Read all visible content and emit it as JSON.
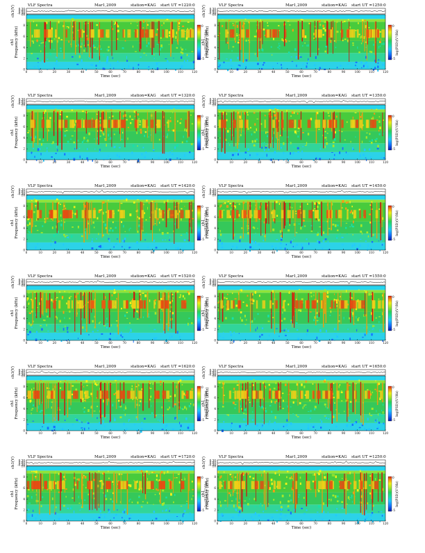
{
  "header": {
    "title": "VLF Spectra",
    "date": "Mar1,2009",
    "station": "station=KAG",
    "start_prefix": "start  UT  ="
  },
  "labels": {
    "wave_axis": "ch1(V)",
    "freq_axis_line1": "ch1",
    "freq_axis_line2": "Frequency (kHz)",
    "time_axis": "Time (sec)",
    "colorbar": "log(PSD)(V²/Hz)"
  },
  "colors": {
    "ink": "#000000",
    "colormap": [
      "#0a1aa8",
      "#1670ff",
      "#22c8ff",
      "#19e0a8",
      "#2dd35a",
      "#a6e82a",
      "#f2f21a",
      "#f79a14",
      "#e02010"
    ]
  },
  "chart_data": [
    {
      "type": "heatmap",
      "title": "VLF Spectra",
      "date": "Mar1,2009",
      "station": "KAG",
      "start_ut": "1220:0",
      "xlabel": "Time (sec)",
      "ylabel": "Frequency (kHz)",
      "xlim": [
        0,
        120
      ],
      "ylim": [
        0,
        10
      ],
      "x_ticks": [
        0,
        10,
        20,
        30,
        40,
        50,
        60,
        70,
        80,
        90,
        100,
        110,
        120
      ],
      "y_ticks": [
        0,
        2,
        4,
        6,
        8,
        10
      ],
      "wave_ticks": [
        "0.30",
        "0.00",
        "-0.30"
      ],
      "colorbar_ticks": [
        "0",
        "-5"
      ]
    },
    {
      "type": "heatmap",
      "title": "VLF Spectra",
      "date": "Mar1,2009",
      "station": "KAG",
      "start_ut": "1250:0",
      "xlabel": "Time (sec)",
      "ylabel": "Frequency (kHz)",
      "xlim": [
        0,
        120
      ],
      "ylim": [
        0,
        10
      ],
      "x_ticks": [
        0,
        10,
        20,
        30,
        40,
        50,
        60,
        70,
        80,
        90,
        100,
        110,
        120
      ],
      "y_ticks": [
        0,
        2,
        4,
        6,
        8,
        10
      ],
      "wave_ticks": [
        "0.30",
        "0.00",
        "-0.30"
      ],
      "colorbar_ticks": [
        "0",
        "-5"
      ]
    },
    {
      "type": "heatmap",
      "title": "VLF Spectra",
      "date": "Mar1,2009",
      "station": "KAG",
      "start_ut": "1320:0",
      "xlabel": "Time (sec)",
      "ylabel": "Frequency (kHz)",
      "xlim": [
        0,
        120
      ],
      "ylim": [
        0,
        10
      ],
      "x_ticks": [
        0,
        10,
        20,
        30,
        40,
        50,
        60,
        70,
        80,
        90,
        100,
        110,
        120
      ],
      "y_ticks": [
        0,
        2,
        4,
        6,
        8,
        10
      ],
      "wave_ticks": [
        "0.30",
        "0.00",
        "-0.30"
      ],
      "colorbar_ticks": [
        "0",
        "-5"
      ]
    },
    {
      "type": "heatmap",
      "title": "VLF Spectra",
      "date": "Mar1,2009",
      "station": "KAG",
      "start_ut": "1350:0",
      "xlabel": "Time (sec)",
      "ylabel": "Frequency (kHz)",
      "xlim": [
        0,
        120
      ],
      "ylim": [
        0,
        10
      ],
      "x_ticks": [
        0,
        10,
        20,
        30,
        40,
        50,
        60,
        70,
        80,
        90,
        100,
        110,
        120
      ],
      "y_ticks": [
        0,
        2,
        4,
        6,
        8,
        10
      ],
      "wave_ticks": [
        "0.30",
        "0.00",
        "-0.30"
      ],
      "colorbar_ticks": [
        "0",
        "-5"
      ]
    },
    {
      "type": "heatmap",
      "title": "VLF Spectra",
      "date": "Mar1,2009",
      "station": "KAG",
      "start_ut": "1420:0",
      "xlabel": "Time (sec)",
      "ylabel": "Frequency (kHz)",
      "xlim": [
        0,
        120
      ],
      "ylim": [
        0,
        10
      ],
      "x_ticks": [
        0,
        10,
        20,
        30,
        40,
        50,
        60,
        70,
        80,
        90,
        100,
        110,
        120
      ],
      "y_ticks": [
        0,
        2,
        4,
        6,
        8,
        10
      ],
      "wave_ticks": [
        "0.30",
        "0.00",
        "-0.30"
      ],
      "colorbar_ticks": [
        "0",
        "-5"
      ]
    },
    {
      "type": "heatmap",
      "title": "VLF Spectra",
      "date": "Mar1,2009",
      "station": "KAG",
      "start_ut": "1450:0",
      "xlabel": "Time (sec)",
      "ylabel": "Frequency (kHz)",
      "xlim": [
        0,
        120
      ],
      "ylim": [
        0,
        10
      ],
      "x_ticks": [
        0,
        10,
        20,
        30,
        40,
        50,
        60,
        70,
        80,
        90,
        100,
        110,
        120
      ],
      "y_ticks": [
        0,
        2,
        4,
        6,
        8,
        10
      ],
      "wave_ticks": [
        "0.30",
        "0.00",
        "-0.30"
      ],
      "colorbar_ticks": [
        "0",
        "-5"
      ]
    },
    {
      "type": "heatmap",
      "title": "VLF Spectra",
      "date": "Mar1,2009",
      "station": "KAG",
      "start_ut": "1520:0",
      "xlabel": "Time (sec)",
      "ylabel": "Frequency (kHz)",
      "xlim": [
        0,
        120
      ],
      "ylim": [
        0,
        10
      ],
      "x_ticks": [
        0,
        10,
        20,
        30,
        40,
        50,
        60,
        70,
        80,
        90,
        100,
        110,
        120
      ],
      "y_ticks": [
        0,
        2,
        4,
        6,
        8,
        10
      ],
      "wave_ticks": [
        "0.30",
        "0.00",
        "-0.30"
      ],
      "colorbar_ticks": [
        "0",
        "-5"
      ]
    },
    {
      "type": "heatmap",
      "title": "VLF Spectra",
      "date": "Mar1,2009",
      "station": "KAG",
      "start_ut": "1550:0",
      "xlabel": "Time (sec)",
      "ylabel": "Frequency (kHz)",
      "xlim": [
        0,
        120
      ],
      "ylim": [
        0,
        10
      ],
      "x_ticks": [
        0,
        10,
        20,
        30,
        40,
        50,
        60,
        70,
        80,
        90,
        100,
        110,
        120
      ],
      "y_ticks": [
        0,
        2,
        4,
        6,
        8,
        10
      ],
      "wave_ticks": [
        "0.30",
        "0.00",
        "-0.30"
      ],
      "colorbar_ticks": [
        "0",
        "-5"
      ]
    },
    {
      "type": "heatmap",
      "title": "VLF Spectra",
      "date": "Mar1,2009",
      "station": "KAG",
      "start_ut": "1620:0",
      "xlabel": "Time (sec)",
      "ylabel": "Frequency (kHz)",
      "xlim": [
        0,
        120
      ],
      "ylim": [
        0,
        10
      ],
      "x_ticks": [
        0,
        10,
        20,
        30,
        40,
        50,
        60,
        70,
        80,
        90,
        100,
        110,
        120
      ],
      "y_ticks": [
        0,
        2,
        4,
        6,
        8,
        10
      ],
      "wave_ticks": [
        "0.30",
        "0.00",
        "-0.30"
      ],
      "colorbar_ticks": [
        "0",
        "-5"
      ]
    },
    {
      "type": "heatmap",
      "title": "VLF Spectra",
      "date": "Mar1,2009",
      "station": "KAG",
      "start_ut": "1650:0",
      "xlabel": "Time (sec)",
      "ylabel": "Frequency (kHz)",
      "xlim": [
        0,
        120
      ],
      "ylim": [
        0,
        10
      ],
      "x_ticks": [
        0,
        10,
        20,
        30,
        40,
        50,
        60,
        70,
        80,
        90,
        100,
        110,
        120
      ],
      "y_ticks": [
        0,
        2,
        4,
        6,
        8,
        10
      ],
      "wave_ticks": [
        "0.30",
        "0.00",
        "-0.30"
      ],
      "colorbar_ticks": [
        "0",
        "-5"
      ]
    },
    {
      "type": "heatmap",
      "title": "VLF Spectra",
      "date": "Mar1,2009",
      "station": "KAG",
      "start_ut": "1720:0",
      "xlabel": "Time (sec)",
      "ylabel": "Frequency (kHz)",
      "xlim": [
        0,
        120
      ],
      "ylim": [
        0,
        10
      ],
      "x_ticks": [
        0,
        10,
        20,
        30,
        40,
        50,
        60,
        70,
        80,
        90,
        100,
        110,
        120
      ],
      "y_ticks": [
        0,
        2,
        4,
        6,
        8,
        10
      ],
      "wave_ticks": [
        "0.30",
        "0.00",
        "-0.30"
      ],
      "colorbar_ticks": [
        "0",
        "-5"
      ]
    },
    {
      "type": "heatmap",
      "title": "VLF Spectra",
      "date": "Mar1,2009",
      "station": "KAG",
      "start_ut": "1250:0",
      "xlabel": "Time (sec)",
      "ylabel": "Frequency (kHz)",
      "xlim": [
        0,
        120
      ],
      "ylim": [
        0,
        10
      ],
      "x_ticks": [
        0,
        10,
        20,
        30,
        40,
        50,
        60,
        70,
        80,
        90,
        100,
        110,
        120
      ],
      "y_ticks": [
        0,
        2,
        4,
        6,
        8,
        10
      ],
      "wave_ticks": [
        "0.30",
        "0.00",
        "-0.30"
      ],
      "colorbar_ticks": [
        "0",
        "-5"
      ]
    }
  ]
}
